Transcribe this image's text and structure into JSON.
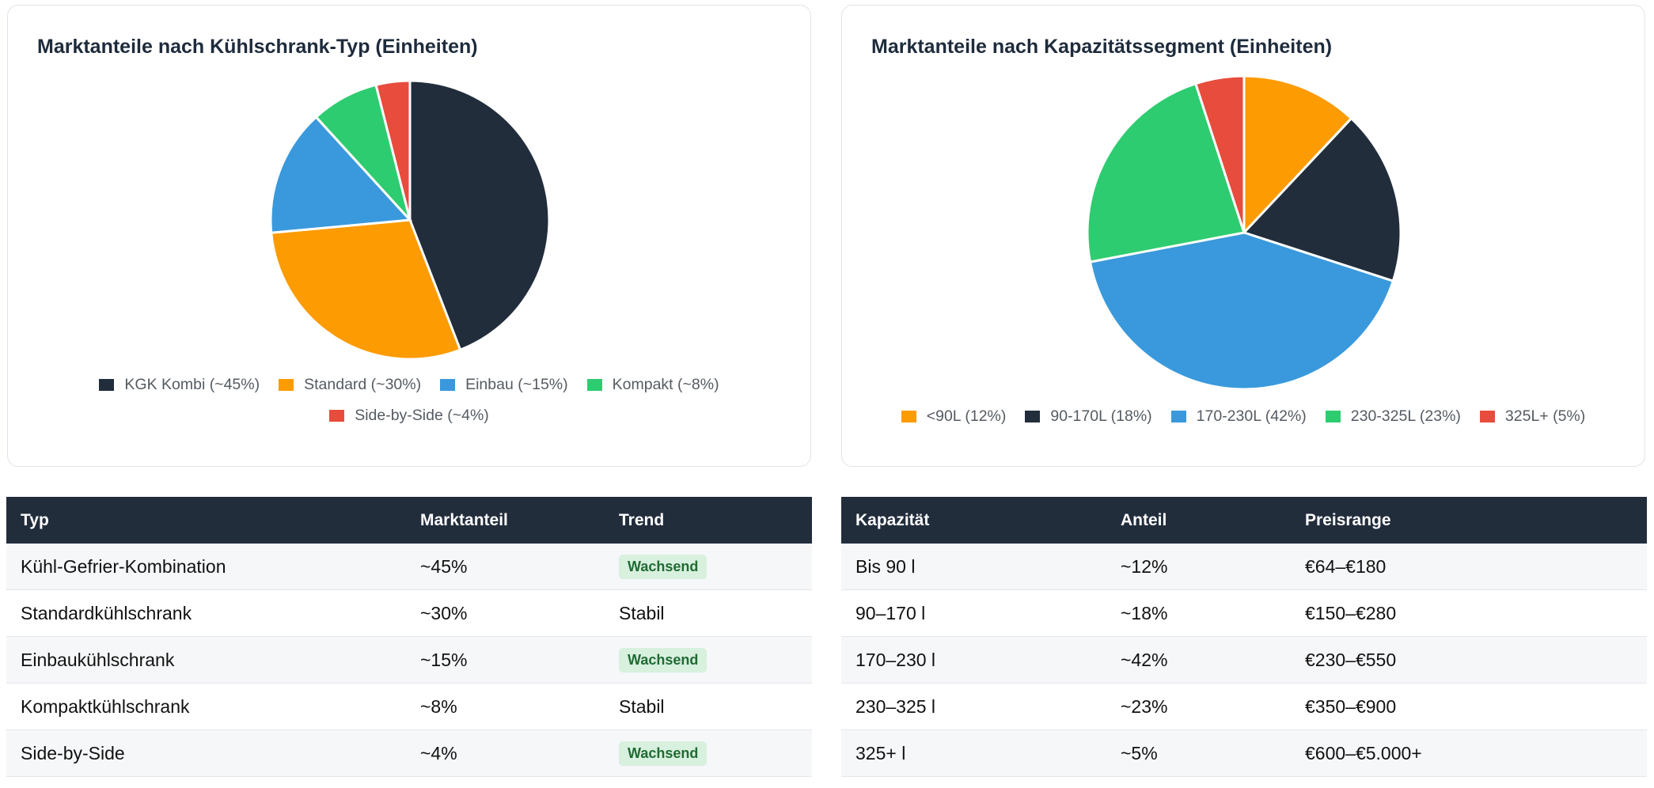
{
  "chart_data": [
    {
      "type": "pie",
      "title": "Marktanteile nach Kühlschrank-Typ (Einheiten)",
      "categories": [
        "KGK Kombi (~45%)",
        "Standard (~30%)",
        "Einbau (~15%)",
        "Kompakt (~8%)",
        "Side-by-Side (~4%)"
      ],
      "values": [
        45,
        30,
        15,
        8,
        4
      ],
      "colors": [
        "#222d3c",
        "#fd9b03",
        "#3a99dc",
        "#2ecc70",
        "#e74c3c"
      ],
      "legend": "bottom"
    },
    {
      "type": "pie",
      "title": "Marktanteile nach Kapazitätssegment (Einheiten)",
      "categories": [
        "<90L (12%)",
        "90-170L (18%)",
        "170-230L (42%)",
        "230-325L (23%)",
        "325L+ (5%)"
      ],
      "values": [
        12,
        18,
        42,
        23,
        5
      ],
      "colors": [
        "#fd9b03",
        "#222d3c",
        "#3a99dc",
        "#2ecc70",
        "#e74c3c"
      ],
      "legend": "bottom"
    }
  ],
  "table_type": {
    "headers": [
      "Typ",
      "Marktanteil",
      "Trend"
    ],
    "rows": [
      {
        "typ": "Kühl-Gefrier-Kombination",
        "anteil": "~45%",
        "trend": "Wachsend",
        "badge": true
      },
      {
        "typ": "Standardkühlschrank",
        "anteil": "~30%",
        "trend": "Stabil",
        "badge": false
      },
      {
        "typ": "Einbaukühlschrank",
        "anteil": "~15%",
        "trend": "Wachsend",
        "badge": true
      },
      {
        "typ": "Kompaktkühlschrank",
        "anteil": "~8%",
        "trend": "Stabil",
        "badge": false
      },
      {
        "typ": "Side-by-Side",
        "anteil": "~4%",
        "trend": "Wachsend",
        "badge": true
      }
    ]
  },
  "table_capacity": {
    "headers": [
      "Kapazität",
      "Anteil",
      "Preisrange"
    ],
    "rows": [
      {
        "kapazitaet": "Bis 90 l",
        "anteil": "~12%",
        "preis": "€64–€180"
      },
      {
        "kapazitaet": "90–170 l",
        "anteil": "~18%",
        "preis": "€150–€280"
      },
      {
        "kapazitaet": "170–230 l",
        "anteil": "~42%",
        "preis": "€230–€550"
      },
      {
        "kapazitaet": "230–325 l",
        "anteil": "~23%",
        "preis": "€350–€900"
      },
      {
        "kapazitaet": "325+ l",
        "anteil": "~5%",
        "preis": "€600–€5.000+"
      }
    ]
  }
}
